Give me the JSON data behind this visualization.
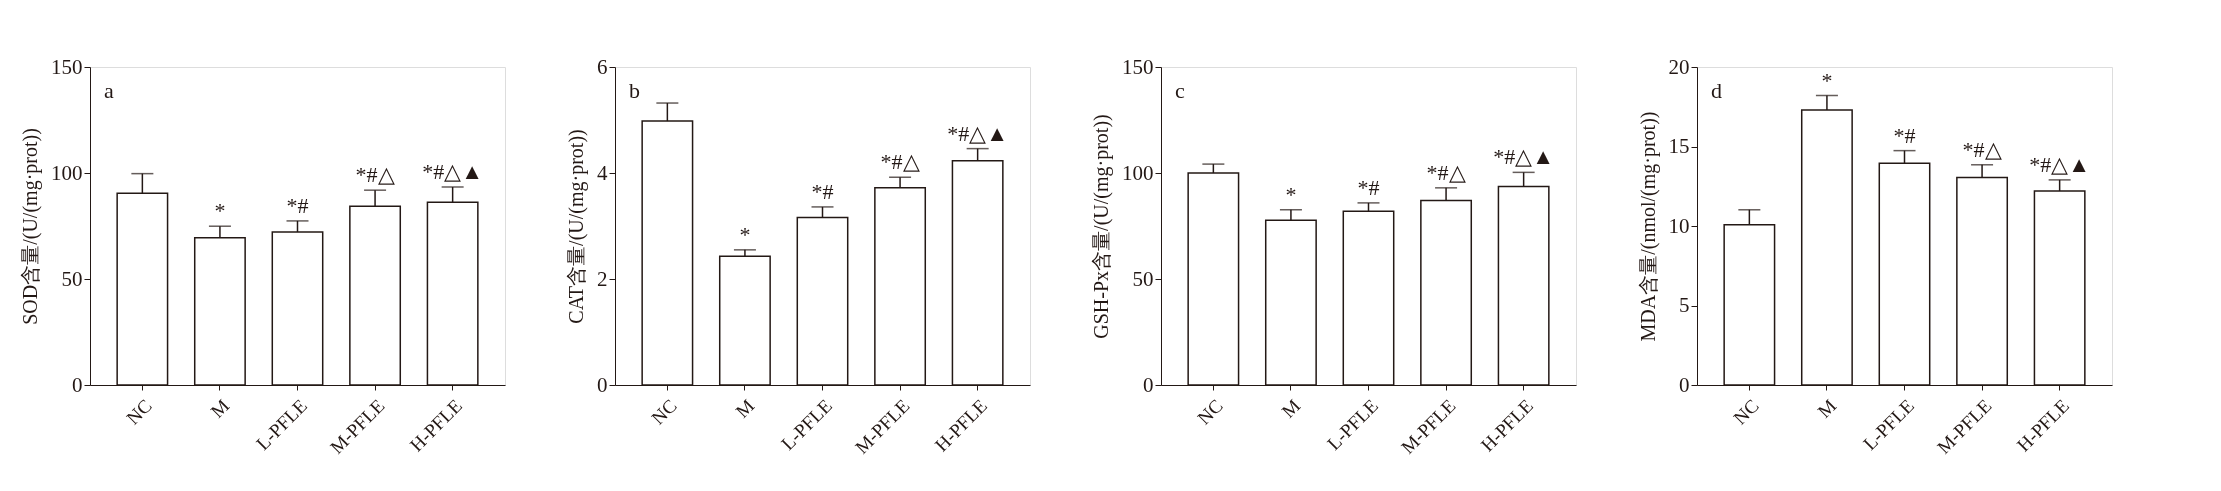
{
  "chart_data": [
    {
      "type": "bar",
      "categories": [
        "NC",
        "M",
        "L-PFLE",
        "M-PFLE",
        "H-PFLE"
      ],
      "values": [
        90.4,
        69.5,
        72.2,
        84.3,
        86.2
      ],
      "errors": [
        9.3,
        5.4,
        5.2,
        7.6,
        7.2
      ],
      "color": "#ffffff",
      "ylabel": "SOD含量/(U/(mg·prot))",
      "ylim": [
        0,
        150
      ],
      "yticks": [
        0,
        50,
        100,
        150
      ],
      "annotations": [
        "a",
        {
          "text": "*",
          "x": "M",
          "y": 74.9
        },
        {
          "text": "*#",
          "x": "L-PFLE",
          "y": 77.4
        },
        {
          "text": "*#△",
          "x": "M-PFLE",
          "y": 91.9
        },
        {
          "text": "*#△▲",
          "x": "H-PFLE",
          "y": 93.4
        }
      ]
    },
    {
      "type": "bar",
      "categories": [
        "NC",
        "M",
        "L-PFLE",
        "M-PFLE",
        "H-PFLE"
      ],
      "values": [
        4.98,
        2.43,
        3.16,
        3.72,
        4.23
      ],
      "errors": [
        0.34,
        0.12,
        0.2,
        0.2,
        0.23
      ],
      "color": "#ffffff",
      "ylabel": "CAT含量/(U/(mg·prot))",
      "ylim": [
        0,
        6
      ],
      "yticks": [
        0,
        2,
        4,
        6
      ],
      "annotations": [
        "b",
        {
          "text": "*",
          "x": "M",
          "y": 2.55
        },
        {
          "text": "*#",
          "x": "L-PFLE",
          "y": 3.36
        },
        {
          "text": "*#△",
          "x": "M-PFLE",
          "y": 3.92
        },
        {
          "text": "*#△▲",
          "x": "H-PFLE",
          "y": 4.46
        }
      ]
    },
    {
      "type": "bar",
      "categories": [
        "NC",
        "M",
        "L-PFLE",
        "M-PFLE",
        "H-PFLE"
      ],
      "values": [
        100,
        77.7,
        81.9,
        87,
        93.6
      ],
      "errors": [
        4.2,
        5,
        4,
        6,
        6.7
      ],
      "color": "#ffffff",
      "ylabel": "GSH-Px含量/(U/(mg·prot))",
      "ylim": [
        0,
        150
      ],
      "yticks": [
        0,
        50,
        100,
        150
      ],
      "annotations": [
        "c",
        {
          "text": "*",
          "x": "M",
          "y": 82.7
        },
        {
          "text": "*#",
          "x": "L-PFLE",
          "y": 85.9
        },
        {
          "text": "*#△",
          "x": "M-PFLE",
          "y": 93
        },
        {
          "text": "*#△▲",
          "x": "H-PFLE",
          "y": 100.3
        }
      ]
    },
    {
      "type": "bar",
      "categories": [
        "NC",
        "M",
        "L-PFLE",
        "M-PFLE",
        "H-PFLE"
      ],
      "values": [
        10.08,
        17.3,
        13.94,
        13.05,
        12.2
      ],
      "errors": [
        0.94,
        0.9,
        0.8,
        0.8,
        0.7
      ],
      "color": "#ffffff",
      "ylabel": "MDA含量/(nmol/(mg·prot))",
      "ylim": [
        0,
        20
      ],
      "yticks": [
        0,
        5,
        10,
        15,
        20
      ],
      "annotations": [
        "d",
        {
          "text": "*",
          "x": "M",
          "y": 18.2
        },
        {
          "text": "*#",
          "x": "L-PFLE",
          "y": 14.74
        },
        {
          "text": "*#△",
          "x": "M-PFLE",
          "y": 13.85
        },
        {
          "text": "*#△▲",
          "x": "H-PFLE",
          "y": 12.9
        }
      ]
    }
  ]
}
